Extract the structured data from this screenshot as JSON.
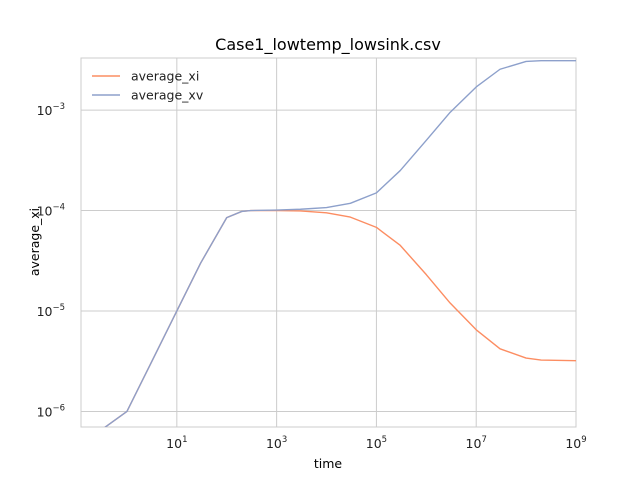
{
  "chart_data": {
    "type": "line",
    "title": "Case1_lowtemp_lowsink.csv",
    "xlabel": "time",
    "ylabel": "average_xi",
    "xscale": "log",
    "yscale": "log",
    "xlim": [
      0.12,
      1000000000.0
    ],
    "ylim": [
      7e-07,
      0.0033
    ],
    "grid": true,
    "legend_position": "upper-left",
    "xticks": [
      {
        "base": "10",
        "exp": "1",
        "value": 10
      },
      {
        "base": "10",
        "exp": "3",
        "value": 1000
      },
      {
        "base": "10",
        "exp": "5",
        "value": 100000
      },
      {
        "base": "10",
        "exp": "7",
        "value": 10000000
      },
      {
        "base": "10",
        "exp": "9",
        "value": 1000000000
      }
    ],
    "yticks": [
      {
        "base": "10",
        "exp": "−6",
        "value": 1e-06
      },
      {
        "base": "10",
        "exp": "−5",
        "value": 1e-05
      },
      {
        "base": "10",
        "exp": "−4",
        "value": 0.0001
      },
      {
        "base": "10",
        "exp": "−3",
        "value": 0.001
      }
    ],
    "series": [
      {
        "name": "average_xi",
        "color": "#fc8d62",
        "x": [
          0.3,
          1,
          3,
          10,
          30,
          100,
          200,
          300,
          1000,
          3000,
          10000,
          30000,
          100000,
          300000,
          1000000,
          3000000,
          10000000,
          30000000,
          100000000,
          200000000,
          1000000000
        ],
        "y": [
          6.5e-07,
          1e-06,
          3e-06,
          1e-05,
          3e-05,
          8.5e-05,
          9.8e-05,
          0.0001,
          0.0001,
          9.9e-05,
          9.5e-05,
          8.6e-05,
          6.8e-05,
          4.5e-05,
          2.3e-05,
          1.2e-05,
          6.5e-06,
          4.2e-06,
          3.4e-06,
          3.25e-06,
          3.2e-06
        ]
      },
      {
        "name": "average_xv",
        "color": "#8da0cb",
        "x": [
          0.3,
          1,
          3,
          10,
          30,
          100,
          200,
          300,
          1000,
          3000,
          10000,
          30000,
          100000,
          300000,
          1000000,
          3000000,
          10000000,
          30000000,
          100000000,
          200000000,
          1000000000
        ],
        "y": [
          6.5e-07,
          1e-06,
          3e-06,
          1e-05,
          3e-05,
          8.5e-05,
          9.8e-05,
          0.0001,
          0.000101,
          0.000103,
          0.000107,
          0.000118,
          0.00015,
          0.00025,
          0.0005,
          0.00095,
          0.0017,
          0.00255,
          0.00305,
          0.0031,
          0.0031
        ]
      }
    ]
  }
}
